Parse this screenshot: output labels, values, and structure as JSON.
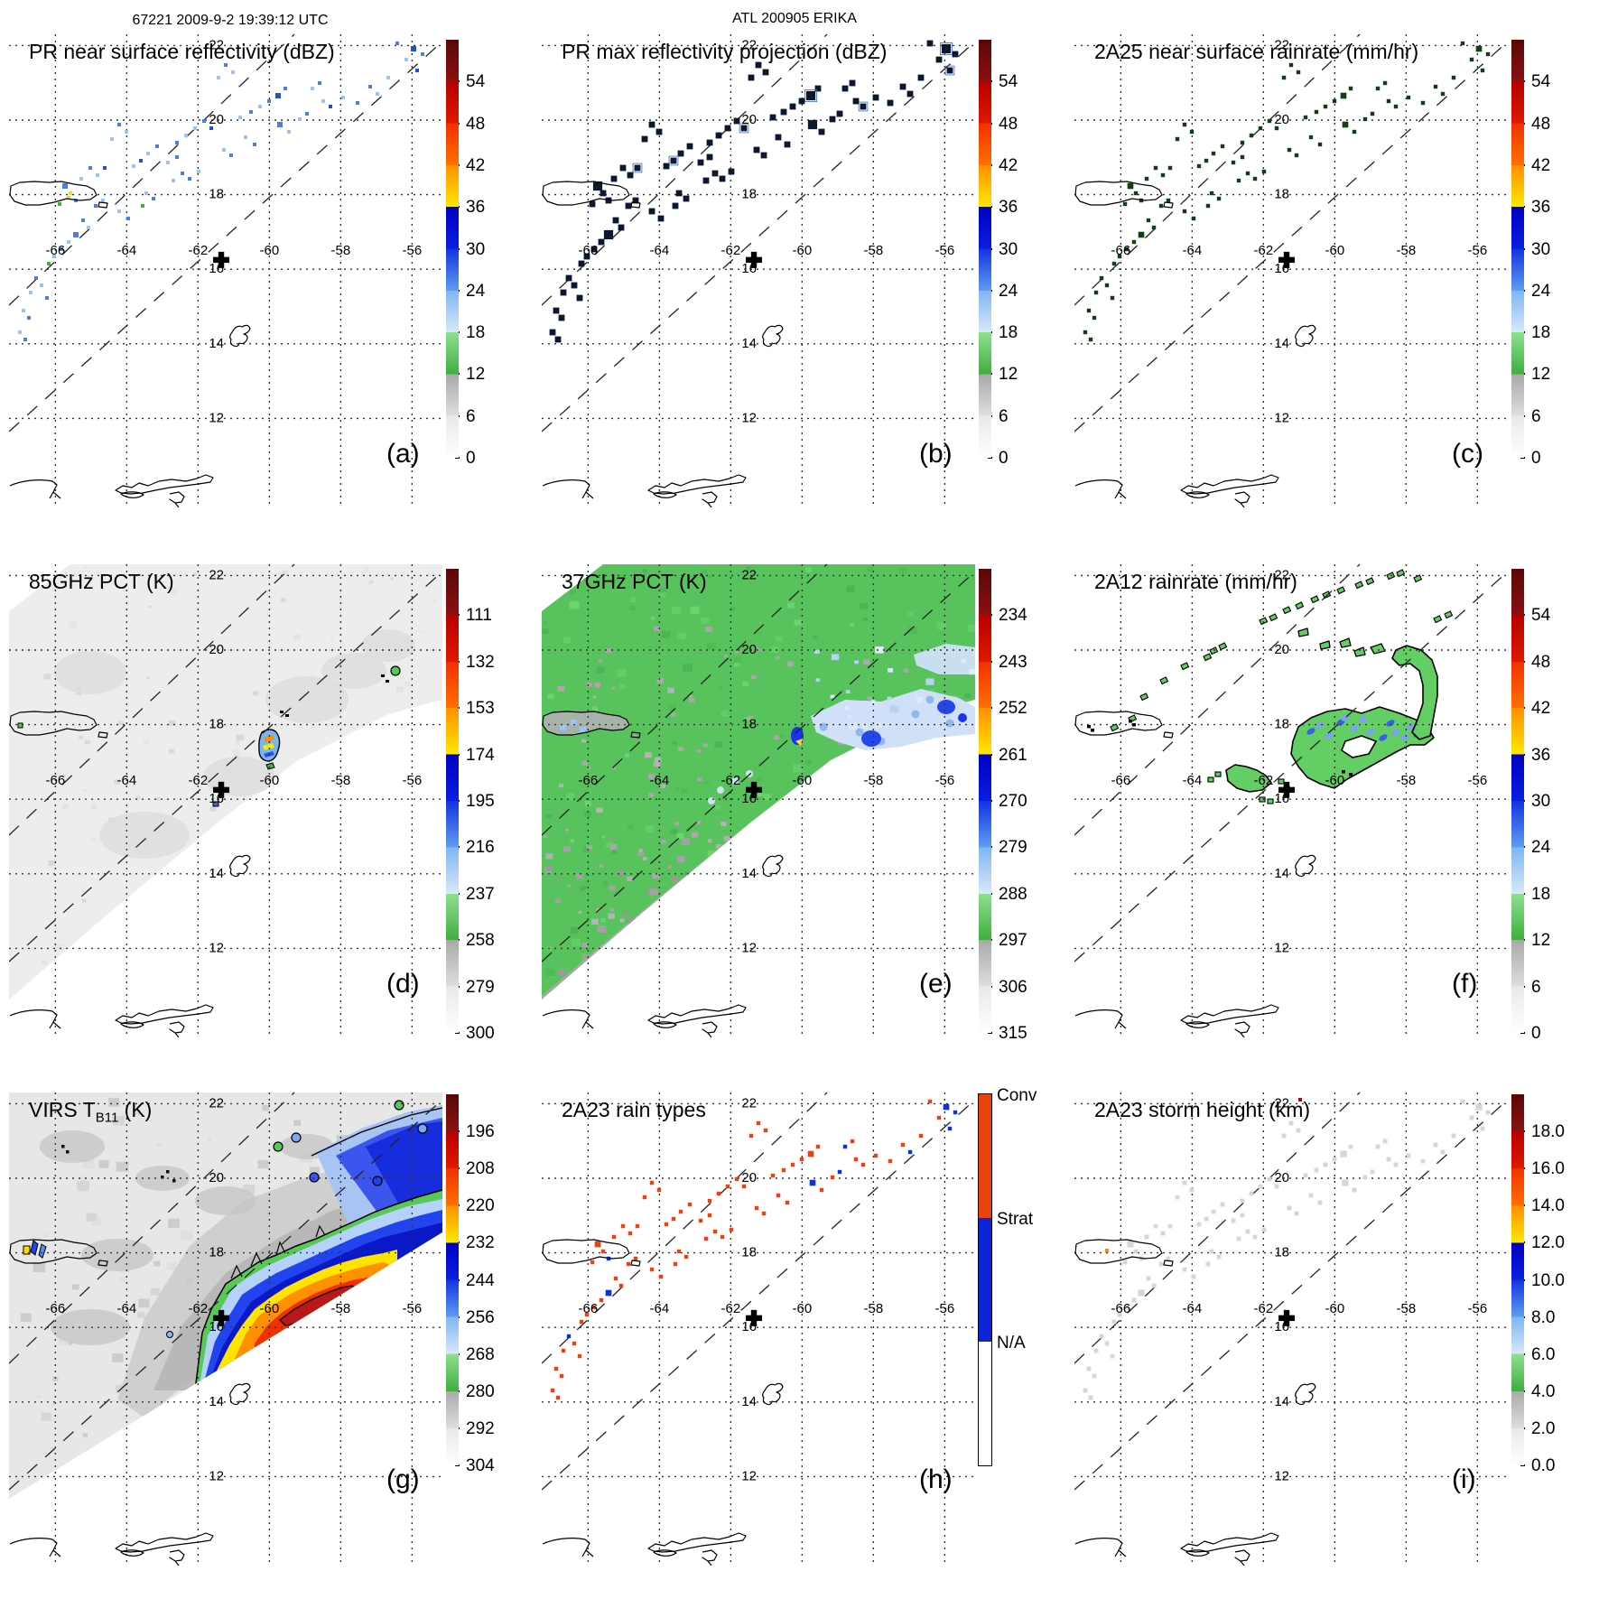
{
  "header": {
    "left": "67221 2009-9-2 19:39:12 UTC",
    "center": "ATL 200905 ERIKA"
  },
  "geo": {
    "lon_ticks": [
      -66,
      -64,
      -62,
      -60,
      -58,
      -56
    ],
    "lat_ticks": [
      12,
      14,
      16,
      18,
      20,
      22
    ],
    "lon_min": -67.3,
    "lon_max": -55.15,
    "lat_min": 9.7,
    "lat_max": 22.3,
    "cross_lon": -61.35,
    "cross_lat": 16.25
  },
  "panels": [
    {
      "id": "a",
      "letter": "(a)",
      "title_pre": "PR near surface reflectivity (dBZ)",
      "title_sub": "",
      "title_post": "",
      "colorbar": "dbz",
      "layer": "points",
      "scheme": "refl"
    },
    {
      "id": "b",
      "letter": "(b)",
      "title_pre": "PR max reflectivity projection (dBZ)",
      "title_sub": "",
      "title_post": "",
      "colorbar": "dbz",
      "layer": "points",
      "scheme": "dark"
    },
    {
      "id": "c",
      "letter": "(c)",
      "title_pre": "2A25 near surface rainrate (mm/hr)",
      "title_sub": "",
      "title_post": "",
      "colorbar": "dbz",
      "layer": "points",
      "scheme": "rain"
    },
    {
      "id": "d",
      "letter": "(d)",
      "title_pre": "85GHz PCT (K)",
      "title_sub": "",
      "title_post": "",
      "colorbar": "pct85",
      "layer": "tmi_gray",
      "scheme": ""
    },
    {
      "id": "e",
      "letter": "(e)",
      "title_pre": "37GHz PCT (K)",
      "title_sub": "",
      "title_post": "",
      "colorbar": "pct37",
      "layer": "tmi_green",
      "scheme": ""
    },
    {
      "id": "f",
      "letter": "(f)",
      "title_pre": "2A12 rainrate (mm/hr)",
      "title_sub": "",
      "title_post": "",
      "colorbar": "dbz",
      "layer": "rain2a12",
      "scheme": ""
    },
    {
      "id": "g",
      "letter": "(g)",
      "title_pre": "VIRS T",
      "title_sub": "B11",
      "title_post": " (K)",
      "colorbar": "tb11",
      "layer": "virs",
      "scheme": ""
    },
    {
      "id": "h",
      "letter": "(h)",
      "title_pre": "2A23 rain types",
      "title_sub": "",
      "title_post": "",
      "colorbar": "types",
      "layer": "points",
      "scheme": "types"
    },
    {
      "id": "i",
      "letter": "(i)",
      "title_pre": "2A23 storm height (km)",
      "title_sub": "",
      "title_post": "",
      "colorbar": "height",
      "layer": "points",
      "scheme": "faint"
    }
  ],
  "colorbars": {
    "dbz": {
      "type": "rainbow",
      "labels": [
        "54",
        "48",
        "42",
        "36",
        "30",
        "24",
        "18",
        "12",
        "6",
        "0"
      ]
    },
    "pct85": {
      "type": "rainbow",
      "labels": [
        "111",
        "132",
        "153",
        "174",
        "195",
        "216",
        "237",
        "258",
        "279",
        "300"
      ]
    },
    "pct37": {
      "type": "rainbow",
      "labels": [
        "234",
        "243",
        "252",
        "261",
        "270",
        "279",
        "288",
        "297",
        "306",
        "315"
      ]
    },
    "tb11": {
      "type": "rainbow",
      "labels": [
        "196",
        "208",
        "220",
        "232",
        "244",
        "256",
        "268",
        "280",
        "292",
        "304"
      ]
    },
    "height": {
      "type": "rainbow",
      "labels": [
        "18.0",
        "16.0",
        "14.0",
        "12.0",
        "10.0",
        "8.0",
        "6.0",
        "4.0",
        "2.0",
        "0.0"
      ]
    },
    "types": {
      "type": "segments",
      "labels": [
        "Conv",
        "Strat",
        "N/A"
      ],
      "colors": [
        "#e8430f",
        "#0b24d8",
        "#ffffff"
      ]
    }
  },
  "gradient_stops": [
    [
      0,
      "#ffffff"
    ],
    [
      0.1,
      "#e9e9e9"
    ],
    [
      0.1,
      "#dedede"
    ],
    [
      0.2,
      "#a9a9a9"
    ],
    [
      0.2,
      "#3fae3f"
    ],
    [
      0.3,
      "#8fdf8f"
    ],
    [
      0.3,
      "#d8e8fa"
    ],
    [
      0.4,
      "#7fb6f2"
    ],
    [
      0.4,
      "#5f9cf0"
    ],
    [
      0.5,
      "#1333e0"
    ],
    [
      0.5,
      "#0a1ede"
    ],
    [
      0.6,
      "#0000c2"
    ],
    [
      0.6,
      "#ffe800"
    ],
    [
      0.7,
      "#ff9000"
    ],
    [
      0.7,
      "#ff7000"
    ],
    [
      0.8,
      "#f03000"
    ],
    [
      0.8,
      "#e01800"
    ],
    [
      0.9,
      "#b60000"
    ],
    [
      0.9,
      "#8c1010"
    ],
    [
      1,
      "#5a0808"
    ]
  ],
  "schemes": {
    "refl": {
      "colors": [
        "#9fc0f4",
        "#4a7de8",
        "#1f4fd2",
        "#3cb43c",
        "#e8e030"
      ],
      "size": 1.0
    },
    "dark": {
      "mono": "#0c1830",
      "size": 1.7
    },
    "rain": {
      "mono": "#123f16",
      "size": 1.1
    },
    "types": {
      "conv": "#f04010",
      "strat": "#0c2fe8",
      "size": 1.1
    },
    "faint": {
      "mono": "#d6d6d6",
      "size": 1.2
    }
  },
  "points": [
    [
      448,
      16,
      3,
      2,
      1
    ],
    [
      458,
      22,
      2,
      1,
      1
    ],
    [
      440,
      28,
      2,
      0,
      0
    ],
    [
      430,
      10,
      2,
      1,
      0
    ],
    [
      452,
      40,
      2,
      2,
      1
    ],
    [
      420,
      48,
      2,
      0,
      0
    ],
    [
      400,
      58,
      2,
      1,
      0
    ],
    [
      408,
      66,
      2,
      0,
      1
    ],
    [
      386,
      76,
      2,
      1,
      0
    ],
    [
      370,
      70,
      2,
      0,
      0
    ],
    [
      356,
      80,
      2,
      2,
      0
    ],
    [
      348,
      74,
      2,
      0,
      0
    ],
    [
      330,
      88,
      2,
      1,
      1
    ],
    [
      322,
      94,
      2,
      0,
      0
    ],
    [
      306,
      60,
      2,
      1,
      0
    ],
    [
      298,
      68,
      3,
      2,
      0
    ],
    [
      288,
      74,
      2,
      1,
      0
    ],
    [
      278,
      80,
      2,
      0,
      0
    ],
    [
      268,
      86,
      2,
      1,
      0
    ],
    [
      256,
      92,
      2,
      0,
      0
    ],
    [
      240,
      34,
      2,
      1,
      0
    ],
    [
      248,
      42,
      2,
      0,
      0
    ],
    [
      232,
      48,
      2,
      0,
      0
    ],
    [
      216,
      96,
      2,
      1,
      0
    ],
    [
      206,
      104,
      2,
      0,
      0
    ],
    [
      224,
      104,
      2,
      2,
      0
    ],
    [
      196,
      112,
      2,
      0,
      0
    ],
    [
      186,
      120,
      2,
      1,
      0
    ],
    [
      164,
      124,
      2,
      1,
      0
    ],
    [
      154,
      132,
      2,
      0,
      0
    ],
    [
      146,
      140,
      2,
      2,
      0
    ],
    [
      138,
      146,
      2,
      0,
      0
    ],
    [
      176,
      142,
      2,
      0,
      0
    ],
    [
      186,
      136,
      2,
      1,
      0
    ],
    [
      238,
      128,
      2,
      0,
      0
    ],
    [
      246,
      134,
      2,
      1,
      0
    ],
    [
      210,
      152,
      2,
      0,
      0
    ],
    [
      200,
      160,
      2,
      1,
      0
    ],
    [
      122,
      100,
      2,
      1,
      0
    ],
    [
      130,
      108,
      2,
      0,
      0
    ],
    [
      114,
      116,
      2,
      0,
      0
    ],
    [
      90,
      148,
      2,
      1,
      0
    ],
    [
      98,
      156,
      2,
      0,
      0
    ],
    [
      106,
      148,
      2,
      2,
      0
    ],
    [
      62,
      168,
      3,
      1,
      0
    ],
    [
      68,
      176,
      2,
      4,
      0
    ],
    [
      74,
      184,
      2,
      1,
      1
    ],
    [
      80,
      160,
      2,
      0,
      0
    ],
    [
      56,
      188,
      2,
      3,
      0
    ],
    [
      96,
      190,
      2,
      1,
      0
    ],
    [
      104,
      184,
      2,
      0,
      0
    ],
    [
      82,
      206,
      2,
      1,
      0
    ],
    [
      88,
      214,
      2,
      0,
      0
    ],
    [
      74,
      222,
      3,
      1,
      1
    ],
    [
      66,
      230,
      2,
      0,
      0
    ],
    [
      58,
      238,
      2,
      1,
      0
    ],
    [
      50,
      246,
      2,
      0,
      0
    ],
    [
      44,
      254,
      2,
      3,
      0
    ],
    [
      30,
      270,
      2,
      1,
      1
    ],
    [
      36,
      278,
      2,
      0,
      0
    ],
    [
      24,
      286,
      2,
      0,
      0
    ],
    [
      42,
      292,
      2,
      1,
      0
    ],
    [
      16,
      306,
      2,
      0,
      0
    ],
    [
      22,
      314,
      2,
      1,
      0
    ],
    [
      152,
      176,
      2,
      0,
      0
    ],
    [
      160,
      182,
      2,
      1,
      0
    ],
    [
      148,
      190,
      2,
      3,
      0
    ],
    [
      122,
      196,
      2,
      0,
      0
    ],
    [
      132,
      204,
      2,
      1,
      0
    ],
    [
      182,
      162,
      2,
      0,
      0
    ],
    [
      192,
      154,
      2,
      1,
      0
    ],
    [
      336,
      60,
      2,
      0,
      1
    ],
    [
      344,
      54,
      2,
      1,
      0
    ],
    [
      262,
      114,
      2,
      0,
      0
    ],
    [
      272,
      122,
      2,
      1,
      0
    ],
    [
      300,
      100,
      3,
      1,
      1
    ],
    [
      310,
      108,
      2,
      0,
      0
    ],
    [
      12,
      330,
      2,
      0,
      0
    ],
    [
      18,
      338,
      2,
      1,
      0
    ]
  ],
  "extras": {
    "i": [
      [
        36,
        175,
        "#ff8800"
      ],
      [
        250,
        8,
        "#cc0000"
      ]
    ],
    "a": [
      [
        66,
        181,
        "#e8e030"
      ]
    ]
  },
  "chart_data": [
    {
      "panel": "a",
      "type": "heatmap",
      "title": "PR near surface reflectivity (dBZ)",
      "units": "dBZ",
      "colorbar_ticks": [
        54,
        48,
        42,
        36,
        30,
        24,
        18,
        12,
        6,
        0
      ],
      "extent": {
        "lon": [
          -67.3,
          -55.15
        ],
        "lat": [
          9.7,
          22.3
        ]
      },
      "storm_center": {
        "lon": -61.35,
        "lat": 16.25
      },
      "content": "scattered light-rain echoes 18-36 dBZ along TRMM PR swath NE of Puerto Rico"
    },
    {
      "panel": "b",
      "type": "heatmap",
      "title": "PR max reflectivity projection (dBZ)",
      "units": "dBZ",
      "colorbar_ticks": [
        54,
        48,
        42,
        36,
        30,
        24,
        18,
        12,
        6,
        0
      ],
      "content": "dark high-value echo cores along same swath"
    },
    {
      "panel": "c",
      "type": "heatmap",
      "title": "2A25 near surface rainrate (mm/hr)",
      "units": "mm/hr",
      "colorbar_ticks": [
        54,
        48,
        42,
        36,
        30,
        24,
        18,
        12,
        6,
        0
      ],
      "content": "dark green rain cells along swath"
    },
    {
      "panel": "d",
      "type": "heatmap",
      "title": "85GHz PCT (K)",
      "units": "K",
      "colorbar_ticks": [
        111,
        132,
        153,
        174,
        195,
        216,
        237,
        258,
        279,
        300
      ],
      "content": "wide TMI swath ~280-300K (light gray); one convective cell ~150-200K near (-60.2,17.3)"
    },
    {
      "panel": "e",
      "type": "heatmap",
      "title": "37GHz PCT (K)",
      "units": "K",
      "colorbar_ticks": [
        234,
        243,
        252,
        261,
        270,
        279,
        288,
        297,
        306,
        315
      ],
      "content": "green ~283K ocean swath, gray ~300K SW sector, blue 261-279K rain patches, yellow ~255K cell near (-60.2,17.3)"
    },
    {
      "panel": "f",
      "type": "heatmap",
      "title": "2A12 rainrate (mm/hr)",
      "units": "mm/hr",
      "colorbar_ticks": [
        54,
        48,
        42,
        36,
        30,
        24,
        18,
        12,
        6,
        0
      ],
      "content": "green light-rain regions with blue embedded cells east of storm center"
    },
    {
      "panel": "g",
      "type": "heatmap",
      "title": "VIRS TB11 (K)",
      "units": "K",
      "colorbar_ticks": [
        196,
        208,
        220,
        232,
        244,
        256,
        268,
        280,
        292,
        304
      ],
      "content": "IR cloud field: warm gray scene with cold convective shield 196-244K SE of center"
    },
    {
      "panel": "h",
      "type": "categorical",
      "title": "2A23 rain types",
      "categories": [
        "Conv",
        "Strat",
        "N/A"
      ],
      "category_colors": [
        "#e8430f",
        "#0b24d8",
        "#ffffff"
      ],
      "content": "mostly convective (red) pixels with stratiform (blue) clusters"
    },
    {
      "panel": "i",
      "type": "heatmap",
      "title": "2A23 storm height (km)",
      "units": "km",
      "colorbar_ticks": [
        18.0,
        16.0,
        14.0,
        12.0,
        10.0,
        8.0,
        6.0,
        4.0,
        2.0,
        0.0
      ],
      "content": "faint low storm heights (~2-4 km) along swath"
    }
  ]
}
